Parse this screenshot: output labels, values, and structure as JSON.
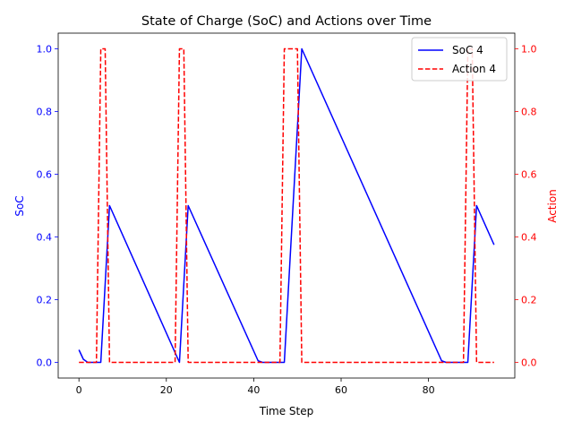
{
  "chart_data": {
    "type": "line",
    "title": "State of Charge (SoC) and Actions over Time",
    "xlabel": "Time Step",
    "ylabel_left": "SoC",
    "ylabel_right": "Action",
    "xlim": [
      -4.75,
      99.75
    ],
    "ylim_left": [
      -0.05,
      1.05
    ],
    "ylim_right": [
      -0.05,
      1.05
    ],
    "x_ticks": [
      0,
      20,
      40,
      60,
      80
    ],
    "y_ticks_left": [
      0.0,
      0.2,
      0.4,
      0.6,
      0.8,
      1.0
    ],
    "y_ticks_right": [
      0.0,
      0.2,
      0.4,
      0.6,
      0.8,
      1.0
    ],
    "x_tick_labels": [
      "0",
      "20",
      "40",
      "60",
      "80"
    ],
    "y_tick_labels": [
      "0.0",
      "0.2",
      "0.4",
      "0.6",
      "0.8",
      "1.0"
    ],
    "legend_position": "top-right",
    "colors": {
      "left_axis": "#0000ff",
      "right_axis": "#ff0000"
    },
    "series": [
      {
        "name": "SoC 4",
        "axis": "left",
        "color": "#0000ff",
        "style": "solid",
        "x": [
          0,
          1,
          2,
          3,
          4,
          5,
          6,
          7,
          23,
          24,
          25,
          41,
          42,
          43,
          44,
          45,
          46,
          47,
          48,
          49,
          50,
          51,
          83,
          84,
          85,
          86,
          87,
          88,
          89,
          90,
          91,
          95
        ],
        "y": [
          0.04,
          0.01,
          0.0,
          0.0,
          0.0,
          0.0,
          0.25,
          0.5,
          0.0,
          0.25,
          0.5,
          0.005,
          0.0,
          0.0,
          0.0,
          0.0,
          0.0,
          0.0,
          0.25,
          0.5,
          0.75,
          1.0,
          0.005,
          0.0,
          0.0,
          0.0,
          0.0,
          0.0,
          0.0,
          0.25,
          0.5,
          0.375
        ]
      },
      {
        "name": "Action 4",
        "axis": "right",
        "color": "#ff0000",
        "style": "dashed",
        "x": [
          0,
          1,
          2,
          3,
          4,
          5,
          6,
          7,
          8,
          21,
          22,
          23,
          24,
          25,
          26,
          45,
          46,
          47,
          48,
          49,
          50,
          51,
          52,
          87,
          88,
          89,
          90,
          91,
          92,
          95
        ],
        "y": [
          0,
          0,
          0,
          0,
          0,
          1,
          1,
          0,
          0,
          0,
          0,
          1,
          1,
          0,
          0,
          0,
          0,
          1,
          1,
          1,
          1,
          0,
          0,
          0,
          0,
          1,
          1,
          0,
          0,
          0
        ]
      }
    ]
  }
}
